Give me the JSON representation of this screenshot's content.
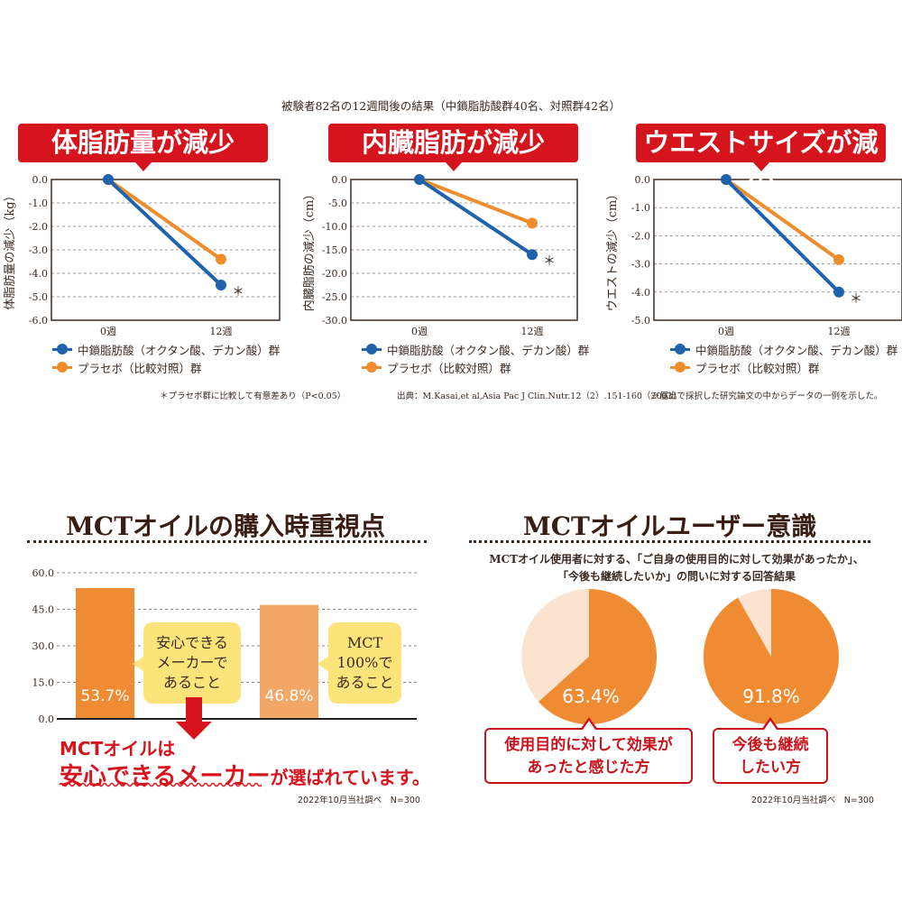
{
  "header": {
    "subtitle": "被験者82名の12週間後の結果（中鎖脂肪酸群40名、対照群42名）"
  },
  "colors": {
    "blue": "#1f63ad",
    "orange": "#ef8c2c",
    "red": "#d5141d",
    "bar1": "#ef8c33",
    "bar2": "#f2a766",
    "pie_main": "#ef8c33",
    "pie_rest": "#fbe3cf"
  },
  "chart_data": [
    {
      "type": "line",
      "title": "体脂肪量が減少",
      "ylabel": "体脂肪量の減少（kg）",
      "categories": [
        "0週",
        "12週"
      ],
      "ylim": [
        -6,
        0
      ],
      "yticks": [
        "0.0",
        "-1.0",
        "-2.0",
        "-3.0",
        "-4.0",
        "-5.0",
        "-6.0"
      ],
      "series": [
        {
          "name": "中鎖脂肪酸（オクタン酸、デカン酸）群",
          "values": [
            0,
            -4.5
          ]
        },
        {
          "name": "プラセボ（比較対照）群",
          "values": [
            0,
            -3.4
          ]
        }
      ],
      "annotation": "＊"
    },
    {
      "type": "line",
      "title": "内臓脂肪が減少",
      "ylabel": "内臓脂肪の減少（cm）",
      "categories": [
        "0週",
        "12週"
      ],
      "ylim": [
        -30,
        0
      ],
      "yticks": [
        "0.0",
        "-5.0",
        "-10.0",
        "-15.0",
        "-20.0",
        "-25.0",
        "-30.0"
      ],
      "series": [
        {
          "name": "中鎖脂肪酸（オクタン酸、デカン酸）群",
          "values": [
            0,
            -16
          ]
        },
        {
          "name": "プラセボ（比較対照）群",
          "values": [
            0,
            -9.3
          ]
        }
      ],
      "annotation": "＊"
    },
    {
      "type": "line",
      "title": "ウエストサイズが減少",
      "ylabel": "ウエストの減少（cm）",
      "categories": [
        "0週",
        "12週"
      ],
      "ylim": [
        -5,
        0
      ],
      "yticks": [
        "0.0",
        "-1.0",
        "-2.0",
        "-3.0",
        "-4.0",
        "-5.0"
      ],
      "series": [
        {
          "name": "中鎖脂肪酸（オクタン酸、デカン酸）群",
          "values": [
            0,
            -4.0
          ]
        },
        {
          "name": "プラセボ（比較対照）群",
          "values": [
            0,
            -2.85
          ]
        }
      ],
      "annotation": "＊"
    },
    {
      "type": "bar",
      "title": "MCTオイルの購入時重視点",
      "categories": [
        "安心できるメーカーであること",
        "MCT 100%であること"
      ],
      "values": [
        53.7,
        46.8
      ],
      "value_labels": [
        "53.7%",
        "46.8%"
      ],
      "ylim": [
        0,
        60
      ],
      "yticks": [
        "60.0",
        "45.0",
        "30.0",
        "15.0",
        "0.0"
      ]
    },
    {
      "type": "pie",
      "title": "MCTオイルユーザー意識",
      "description": [
        "MCTオイル使用者に対する、「ご自身の使用目的に対して効果があったか」、",
        "「今後も継続したいか」の問いに対する回答結果"
      ],
      "slices": [
        {
          "label": "使用目的に対して効果があったと感じた方",
          "value": 63.4,
          "value_label": "63.4%"
        },
        {
          "label": "今後も継続したい方",
          "value": 91.8,
          "value_label": "91.8%"
        }
      ]
    }
  ],
  "footnotes": [
    "＊プラセボ群に比較して有意差あり（P<0.05）",
    "出典：M.Kasai,et al,Asia Pac J Clin.Nutr.12（2）.151-160（2003）",
    "※届出で採択した研究論文の中からデータの一例を示した。"
  ],
  "bar_callouts": [
    [
      "安心できる",
      "メーカーで",
      "あること"
    ],
    [
      "MCT",
      "100%で",
      "あること"
    ]
  ],
  "conclusion": {
    "line1": "MCTオイルは",
    "line2a": "安心できるメーカー",
    "line2b": "が選ばれています。"
  },
  "pie_callouts": [
    [
      "使用目的に対して効果が",
      "あったと感じた方"
    ],
    [
      "今後も継続",
      "したい方"
    ]
  ],
  "survey_note": "2022年10月当社調べ　N=300"
}
